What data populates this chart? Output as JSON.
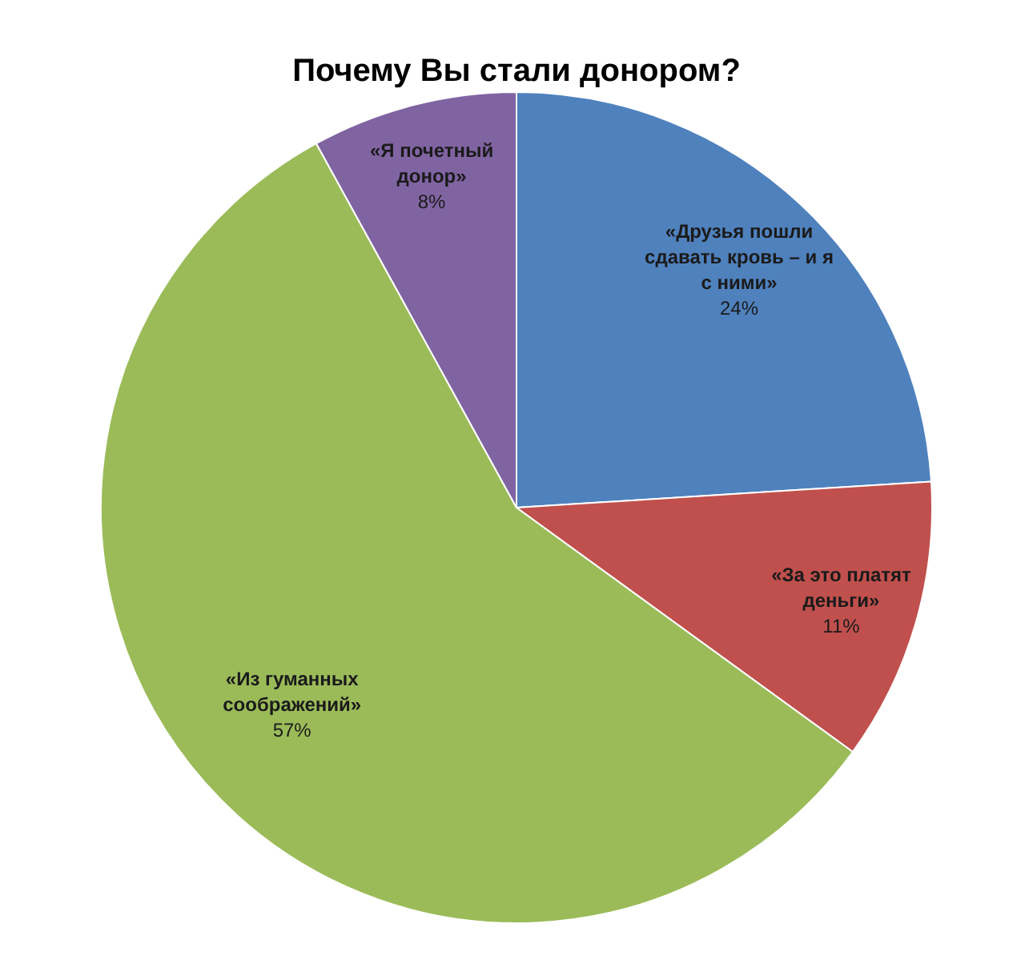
{
  "chart_data": {
    "type": "pie",
    "title": "Почему Вы стали донором?",
    "categories": [
      "«Друзья пошли сдавать кровь – и я с ними»",
      "«За это платят деньги»",
      "«Из гуманных соображений»",
      "«Я почетный донор»"
    ],
    "values": [
      24,
      11,
      57,
      8
    ],
    "colors": [
      "#4f81bd",
      "#c0504d",
      "#9bbb59",
      "#8064a2"
    ],
    "value_labels": [
      "24%",
      "11%",
      "57%",
      "8%"
    ],
    "legend": false
  }
}
